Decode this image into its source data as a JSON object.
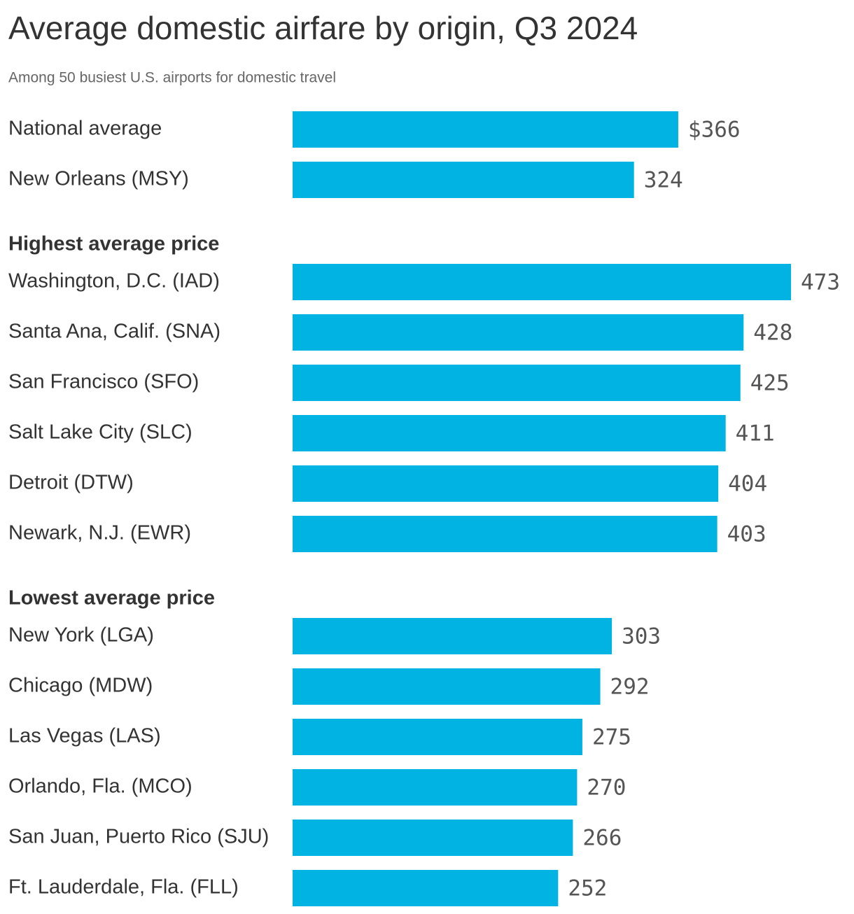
{
  "chart_data": {
    "type": "bar",
    "orientation": "horizontal",
    "title": "Average domestic airfare by origin, Q3 2024",
    "subtitle": "Among 50 busiest U.S. airports for domestic travel",
    "color": "#00b3e3",
    "groups": [
      {
        "categories": [
          "National average",
          "New Orleans (MSY)"
        ],
        "values": [
          366,
          324
        ],
        "value_labels": [
          "$366",
          "324"
        ]
      },
      {
        "title": "Highest average price",
        "categories": [
          "Washington, D.C. (IAD)",
          "Santa Ana, Calif. (SNA)",
          "San Francisco (SFO)",
          "Salt Lake City (SLC)",
          "Detroit (DTW)",
          "Newark, N.J. (EWR)"
        ],
        "values": [
          473,
          428,
          425,
          411,
          404,
          403
        ]
      },
      {
        "title": "Lowest average price",
        "categories": [
          "New York (LGA)",
          "Chicago (MDW)",
          "Las Vegas (LAS)",
          "Orlando, Fla. (MCO)",
          "San Juan, Puerto Rico (SJU)",
          "Ft. Lauderdale, Fla. (FLL)"
        ],
        "values": [
          303,
          292,
          275,
          270,
          266,
          252
        ]
      }
    ]
  }
}
